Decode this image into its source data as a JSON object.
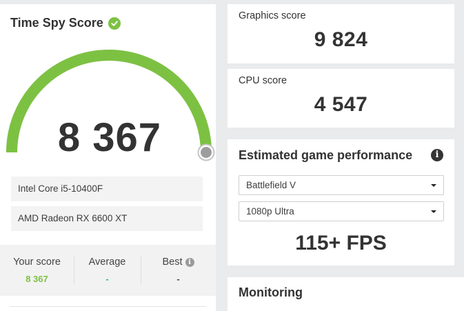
{
  "score_card": {
    "title": "Time Spy Score",
    "score": "8 367",
    "gauge_fraction": 1.0,
    "cpu": "Intel Core i5-10400F",
    "gpu": "AMD Radeon RX 6600 XT",
    "stats": {
      "your_score_label": "Your score",
      "your_score_value": "8 367",
      "average_label": "Average",
      "average_value": "-",
      "best_label": "Best",
      "best_value": "-"
    }
  },
  "graphics": {
    "label": "Graphics score",
    "value": "9 824"
  },
  "cpu_score": {
    "label": "CPU score",
    "value": "4 547"
  },
  "game_perf": {
    "title": "Estimated game performance",
    "info_glyph": "i",
    "game_select": "Battlefield V",
    "preset_select": "1080p Ultra",
    "fps": "115+ FPS"
  },
  "monitoring": {
    "title": "Monitoring"
  },
  "colors": {
    "accent_green": "#7dc142",
    "average_teal": "#2bb0a6",
    "gauge_track": "#cccccc",
    "background": "#e9ebed"
  }
}
